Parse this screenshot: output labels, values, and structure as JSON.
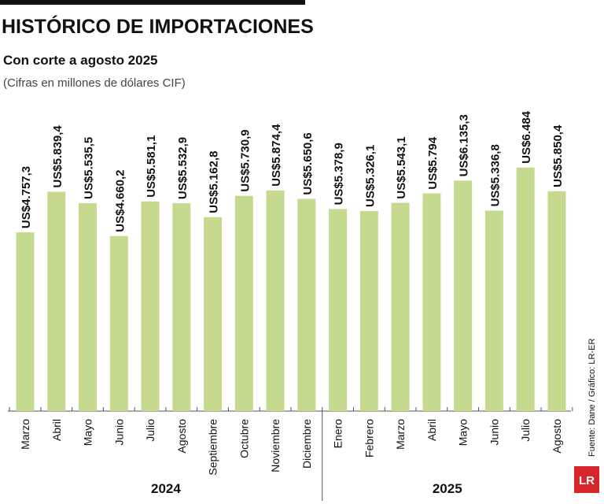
{
  "chart_data": {
    "type": "bar",
    "title": "HISTÓRICO DE IMPORTACIONES",
    "subtitle": "Con corte a agosto 2025",
    "note": "(Cifras en millones de dólares CIF)",
    "source": "Fuente: Dane / Gráfico: LR-ER",
    "logo": "LR",
    "color": "#c5da8e",
    "groups": [
      {
        "name": "2024",
        "categories": [
          "Marzo",
          "Abril",
          "Mayo",
          "Junio",
          "Julio",
          "Agosto",
          "Septiembre",
          "Octubre",
          "Noviembre",
          "Diciembre"
        ],
        "values": [
          4757.3,
          5839.4,
          5535.5,
          4660.2,
          5581.1,
          5532.9,
          5162.8,
          5730.9,
          5874.4,
          5650.6
        ],
        "value_labels": [
          "US$4.757,3",
          "US$5.839,4",
          "US$5.535,5",
          "US$4.660,2",
          "US$5.581,1",
          "US$5.532,9",
          "US$5.162,8",
          "US$5.730,9",
          "US$5.874,4",
          "US$5.650,6"
        ]
      },
      {
        "name": "2025",
        "categories": [
          "Enero",
          "Febrero",
          "Marzo",
          "Abril",
          "Mayo",
          "Junio",
          "Julio",
          "Agosto"
        ],
        "values": [
          5378.9,
          5326.1,
          5543.1,
          5794,
          6135.3,
          5336.8,
          6484,
          5850.4
        ],
        "value_labels": [
          "US$5.378,9",
          "US$5.326,1",
          "US$5.543,1",
          "US$5.794",
          "US$6.135,3",
          "US$5.336,8",
          "US$6.484",
          "US$5.850,4"
        ]
      }
    ]
  }
}
